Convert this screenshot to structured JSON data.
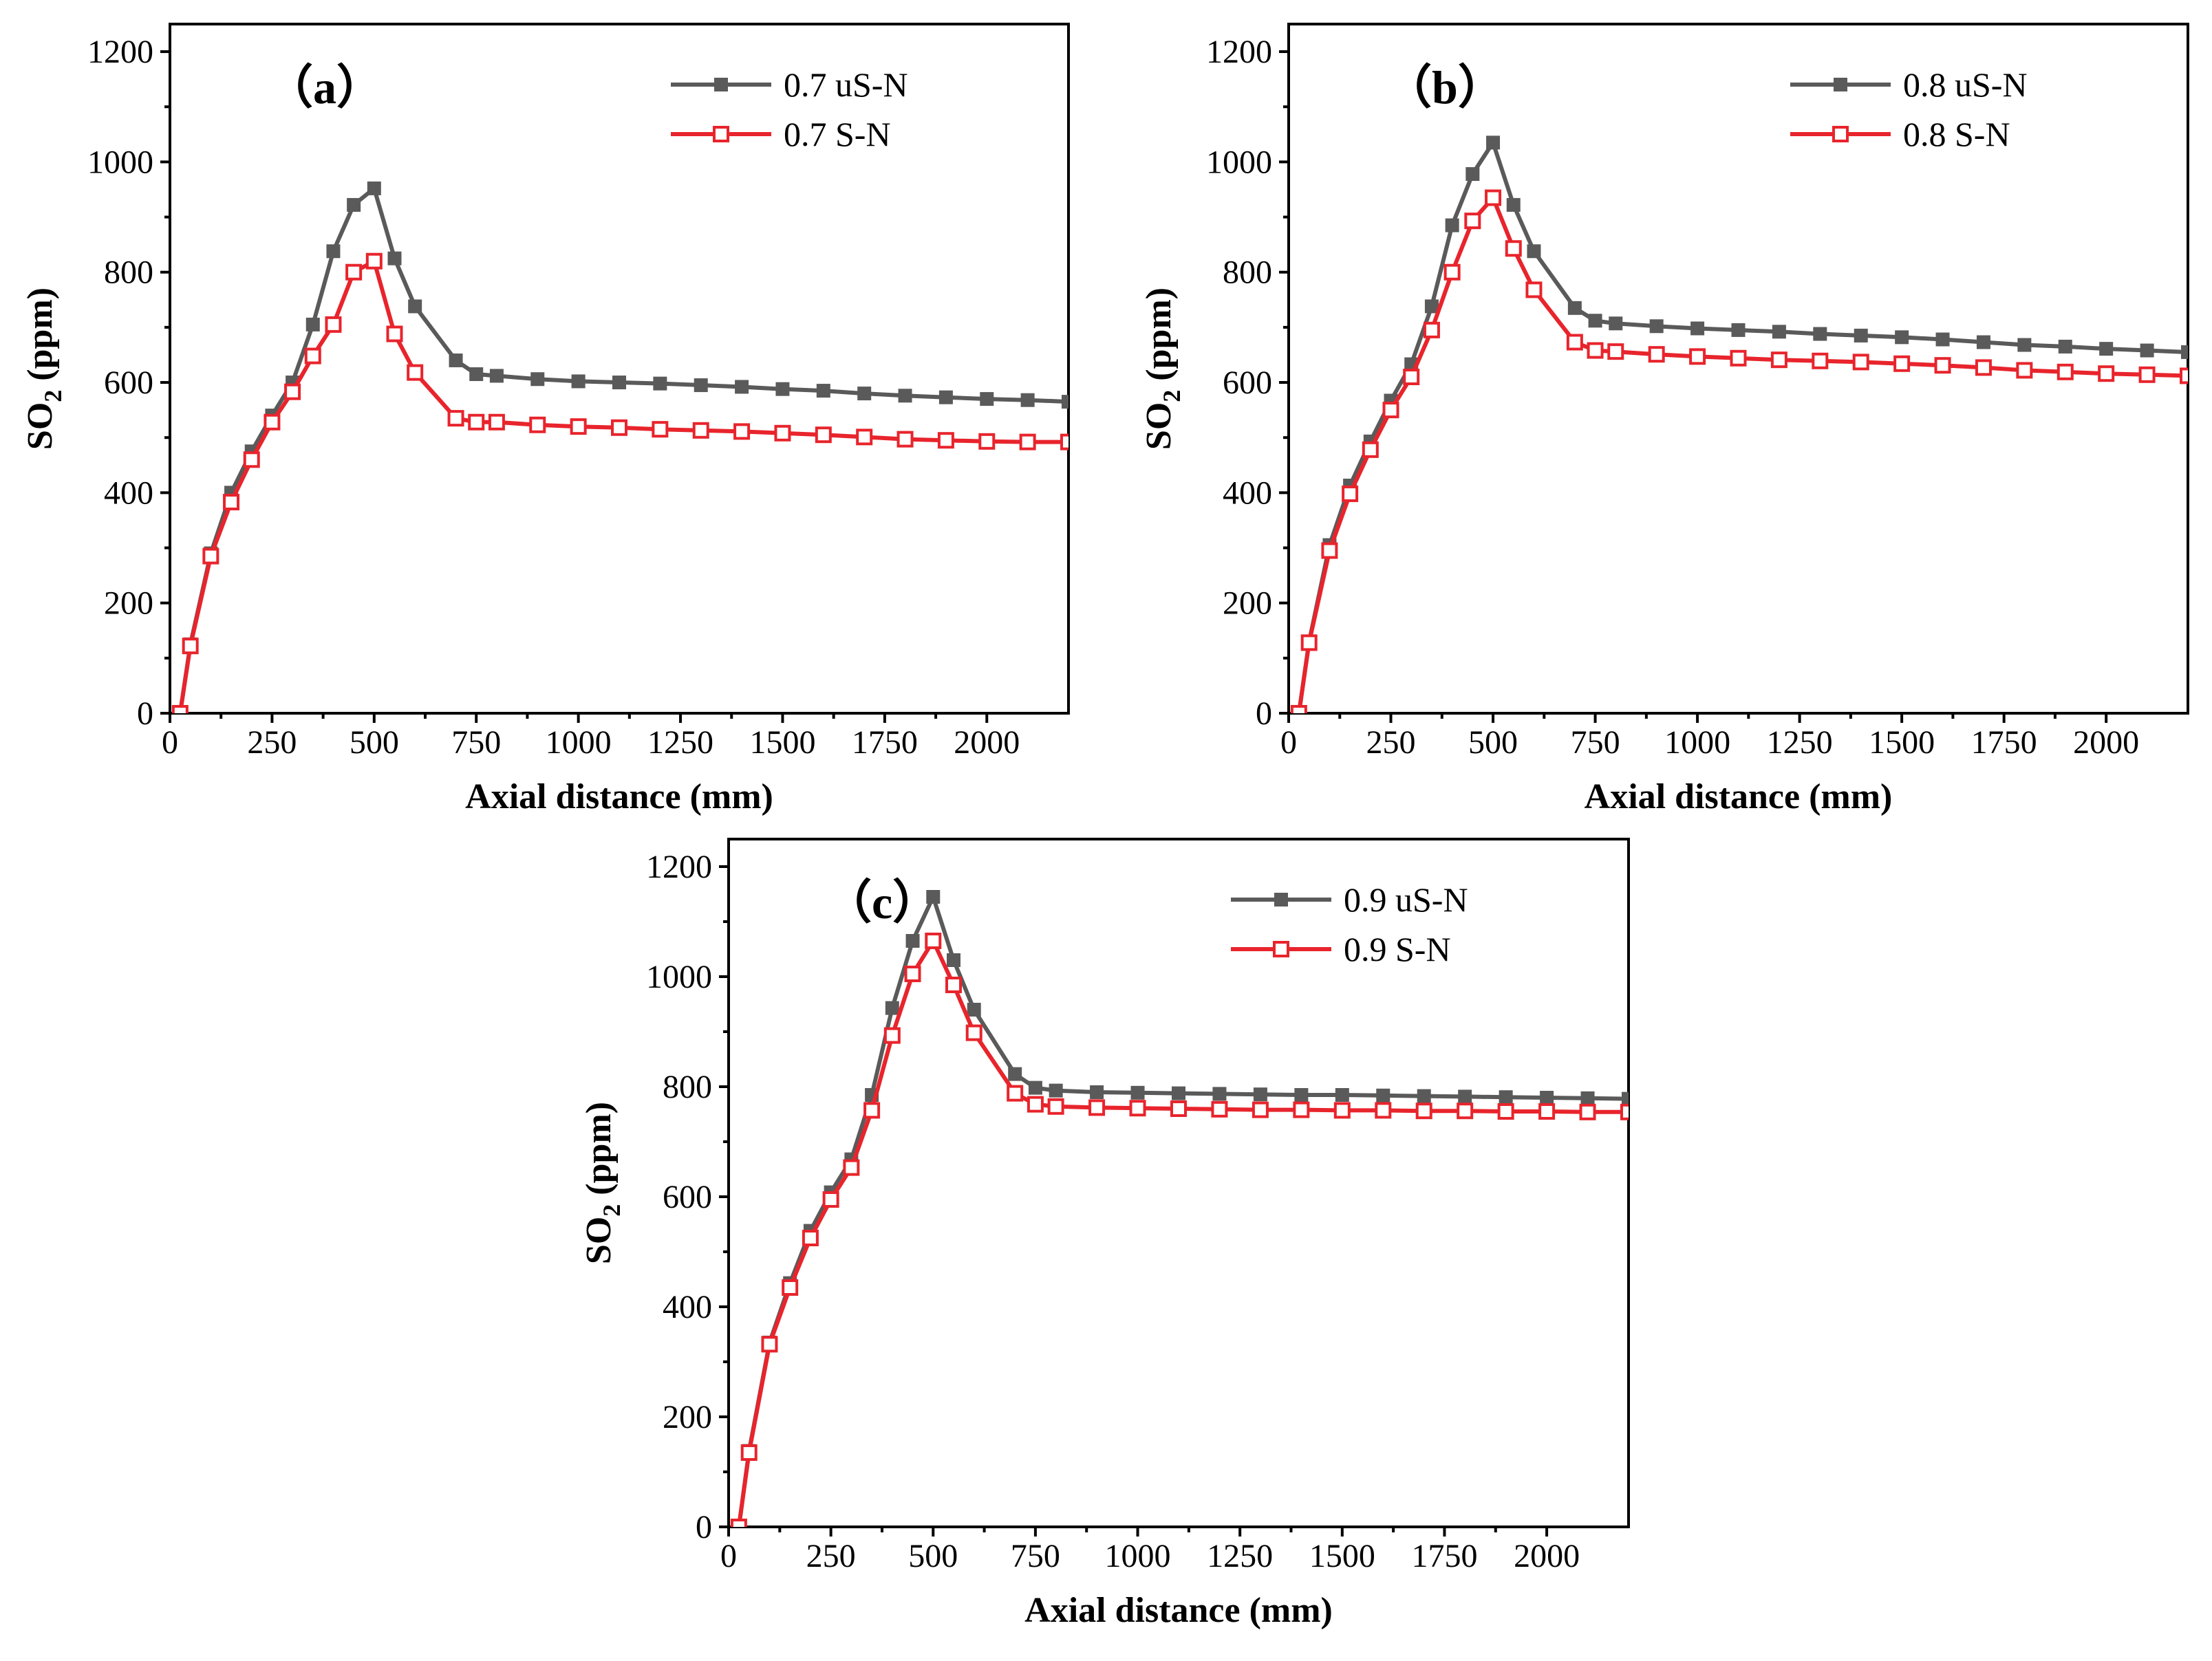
{
  "figure": {
    "panels_count": 3
  },
  "chart_data": [
    {
      "id": "a",
      "type": "line",
      "panel_label": "（a）",
      "title": "",
      "xlabel": "Axial distance (mm)",
      "ylabel_main": "SO",
      "ylabel_sub": "2",
      "ylabel_tail": " (ppm)",
      "xlim": [
        0,
        2200
      ],
      "ylim": [
        0,
        1250
      ],
      "xticks": [
        0,
        250,
        500,
        750,
        1000,
        1250,
        1500,
        1750,
        2000
      ],
      "yticks": [
        0,
        200,
        400,
        600,
        800,
        1000,
        1200
      ],
      "legend_position": "top-right",
      "series": [
        {
          "name": "0.7 uS-N",
          "color": "#5a5a5a",
          "marker": "filled-square",
          "x": [
            25,
            50,
            100,
            150,
            200,
            250,
            300,
            350,
            400,
            450,
            500,
            550,
            600,
            700,
            750,
            800,
            900,
            1000,
            1100,
            1200,
            1300,
            1400,
            1500,
            1600,
            1700,
            1800,
            1900,
            2000,
            2100,
            2200
          ],
          "y": [
            0,
            125,
            290,
            400,
            475,
            540,
            600,
            705,
            838,
            922,
            952,
            825,
            738,
            640,
            615,
            612,
            606,
            602,
            600,
            598,
            595,
            592,
            588,
            585,
            580,
            576,
            573,
            570,
            568,
            565
          ]
        },
        {
          "name": "0.7 S-N",
          "color": "#e8242c",
          "marker": "open-square",
          "x": [
            25,
            50,
            100,
            150,
            200,
            250,
            300,
            350,
            400,
            450,
            500,
            550,
            600,
            700,
            750,
            800,
            900,
            1000,
            1100,
            1200,
            1300,
            1400,
            1500,
            1600,
            1700,
            1800,
            1900,
            2000,
            2100,
            2200
          ],
          "y": [
            0,
            122,
            285,
            383,
            460,
            528,
            583,
            648,
            705,
            800,
            820,
            688,
            618,
            535,
            528,
            528,
            523,
            520,
            518,
            515,
            513,
            511,
            508,
            505,
            501,
            497,
            495,
            493,
            492,
            492
          ]
        }
      ]
    },
    {
      "id": "b",
      "type": "line",
      "panel_label": "（b）",
      "title": "",
      "xlabel": "Axial distance (mm)",
      "ylabel_main": "SO",
      "ylabel_sub": "2",
      "ylabel_tail": " (ppm)",
      "xlim": [
        0,
        2200
      ],
      "ylim": [
        0,
        1250
      ],
      "xticks": [
        0,
        250,
        500,
        750,
        1000,
        1250,
        1500,
        1750,
        2000
      ],
      "yticks": [
        0,
        200,
        400,
        600,
        800,
        1000,
        1200
      ],
      "legend_position": "top-right",
      "series": [
        {
          "name": "0.8 uS-N",
          "color": "#5a5a5a",
          "marker": "filled-square",
          "x": [
            25,
            50,
            100,
            150,
            200,
            250,
            300,
            350,
            400,
            450,
            500,
            550,
            600,
            700,
            750,
            800,
            900,
            1000,
            1100,
            1200,
            1300,
            1400,
            1500,
            1600,
            1700,
            1800,
            1900,
            2000,
            2100,
            2200
          ],
          "y": [
            0,
            130,
            305,
            413,
            493,
            567,
            633,
            738,
            885,
            978,
            1035,
            922,
            838,
            735,
            712,
            707,
            702,
            698,
            695,
            692,
            688,
            685,
            682,
            678,
            673,
            668,
            665,
            661,
            658,
            655
          ]
        },
        {
          "name": "0.8 S-N",
          "color": "#e8242c",
          "marker": "open-square",
          "x": [
            25,
            50,
            100,
            150,
            200,
            250,
            300,
            350,
            400,
            450,
            500,
            550,
            600,
            700,
            750,
            800,
            900,
            1000,
            1100,
            1200,
            1300,
            1400,
            1500,
            1600,
            1700,
            1800,
            1900,
            2000,
            2100,
            2200
          ],
          "y": [
            0,
            128,
            295,
            398,
            478,
            550,
            610,
            695,
            800,
            893,
            935,
            843,
            768,
            673,
            658,
            656,
            651,
            647,
            644,
            641,
            639,
            637,
            634,
            631,
            627,
            622,
            619,
            616,
            614,
            612
          ]
        }
      ]
    },
    {
      "id": "c",
      "type": "line",
      "panel_label": "（c）",
      "title": "",
      "xlabel": "Axial distance (mm)",
      "ylabel_main": "SO",
      "ylabel_sub": "2",
      "ylabel_tail": " (ppm)",
      "xlim": [
        0,
        2200
      ],
      "ylim": [
        0,
        1250
      ],
      "xticks": [
        0,
        250,
        500,
        750,
        1000,
        1250,
        1500,
        1750,
        2000
      ],
      "yticks": [
        0,
        200,
        400,
        600,
        800,
        1000,
        1200
      ],
      "legend_position": "top-right",
      "series": [
        {
          "name": "0.9 uS-N",
          "color": "#5a5a5a",
          "marker": "filled-square",
          "x": [
            25,
            50,
            100,
            150,
            200,
            250,
            300,
            350,
            400,
            450,
            500,
            550,
            600,
            700,
            750,
            800,
            900,
            1000,
            1100,
            1200,
            1300,
            1400,
            1500,
            1600,
            1700,
            1800,
            1900,
            2000,
            2100,
            2200
          ],
          "y": [
            0,
            138,
            335,
            443,
            538,
            608,
            668,
            785,
            943,
            1065,
            1145,
            1030,
            940,
            823,
            798,
            793,
            790,
            789,
            788,
            787,
            786,
            785,
            785,
            784,
            783,
            782,
            781,
            780,
            779,
            778
          ]
        },
        {
          "name": "0.9 S-N",
          "color": "#e8242c",
          "marker": "open-square",
          "x": [
            25,
            50,
            100,
            150,
            200,
            250,
            300,
            350,
            400,
            450,
            500,
            550,
            600,
            700,
            750,
            800,
            900,
            1000,
            1100,
            1200,
            1300,
            1400,
            1500,
            1600,
            1700,
            1800,
            1900,
            2000,
            2100,
            2200
          ],
          "y": [
            0,
            135,
            332,
            435,
            525,
            595,
            653,
            757,
            893,
            1005,
            1065,
            985,
            898,
            788,
            768,
            764,
            762,
            761,
            760,
            759,
            758,
            758,
            757,
            757,
            756,
            756,
            755,
            755,
            754,
            754
          ]
        }
      ]
    }
  ]
}
